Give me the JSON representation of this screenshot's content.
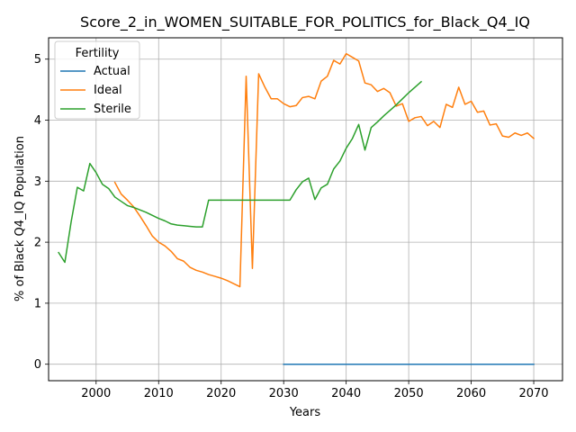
{
  "chart_data": {
    "type": "line",
    "title": "Score_2_in_WOMEN_SUITABLE_FOR_POLITICS_for_Black_Q4_IQ",
    "xlabel": "Years",
    "ylabel": "% of Black Q4_IQ Population",
    "xlim": [
      1992.4,
      2074.6
    ],
    "ylim": [
      -0.27,
      5.35
    ],
    "xticks": [
      2000,
      2010,
      2020,
      2030,
      2040,
      2050,
      2060,
      2070
    ],
    "yticks": [
      0,
      1,
      2,
      3,
      4,
      5
    ],
    "grid": true,
    "legend": {
      "title": "Fertility",
      "placement": "top-left"
    },
    "colors": {
      "Actual": "#1f77b4",
      "Ideal": "#ff7f0e",
      "Sterile": "#2ca02c"
    },
    "series": [
      {
        "name": "Actual",
        "x": [
          2030,
          2035,
          2040,
          2045,
          2050,
          2055,
          2060,
          2065,
          2070
        ],
        "y": [
          0,
          0,
          0,
          0,
          0,
          0,
          0,
          0,
          0
        ]
      },
      {
        "name": "Ideal",
        "x": [
          2003,
          2004,
          2005,
          2006,
          2007,
          2008,
          2009,
          2010,
          2011,
          2012,
          2013,
          2014,
          2015,
          2016,
          2017,
          2018,
          2019,
          2020,
          2021,
          2022,
          2023,
          2024,
          2025,
          2026,
          2027,
          2028,
          2029,
          2030,
          2031,
          2032,
          2033,
          2034,
          2035,
          2036,
          2037,
          2038,
          2039,
          2040,
          2041,
          2042,
          2043,
          2044,
          2045,
          2046,
          2047,
          2048,
          2049,
          2050,
          2051,
          2052,
          2053,
          2054,
          2055,
          2056,
          2057,
          2058,
          2059,
          2060,
          2061,
          2062,
          2063,
          2064,
          2065,
          2066,
          2067,
          2068,
          2069,
          2070
        ],
        "y": [
          2.98,
          2.79,
          2.69,
          2.58,
          2.43,
          2.27,
          2.1,
          2.0,
          1.94,
          1.85,
          1.73,
          1.69,
          1.59,
          1.54,
          1.51,
          1.47,
          1.44,
          1.41,
          1.37,
          1.32,
          1.27,
          4.72,
          1.57,
          4.76,
          4.54,
          4.35,
          4.35,
          4.27,
          4.22,
          4.24,
          4.37,
          4.39,
          4.35,
          4.64,
          4.72,
          4.98,
          4.92,
          5.09,
          5.03,
          4.97,
          4.61,
          4.58,
          4.47,
          4.52,
          4.45,
          4.23,
          4.27,
          3.98,
          4.04,
          4.06,
          3.91,
          3.98,
          3.88,
          4.26,
          4.21,
          4.54,
          4.26,
          4.31,
          4.13,
          4.15,
          3.92,
          3.94,
          3.74,
          3.72,
          3.79,
          3.75,
          3.79,
          3.7
        ]
      },
      {
        "name": "Sterile",
        "x": [
          1994,
          1995,
          1996,
          1997,
          1998,
          1999,
          2000,
          2001,
          2002,
          2003,
          2004,
          2005,
          2006,
          2007,
          2008,
          2009,
          2010,
          2011,
          2012,
          2013,
          2014,
          2015,
          2016,
          2017,
          2018,
          2019,
          2020,
          2021,
          2022,
          2023,
          2024,
          2025,
          2026,
          2027,
          2028,
          2029,
          2030,
          2031,
          2032,
          2033,
          2034,
          2035,
          2036,
          2037,
          2038,
          2039,
          2040,
          2041,
          2042,
          2043,
          2044,
          2045,
          2046,
          2047,
          2048,
          2049,
          2050,
          2051,
          2052
        ],
        "y": [
          1.83,
          1.67,
          2.33,
          2.9,
          2.84,
          3.29,
          3.14,
          2.95,
          2.88,
          2.74,
          2.67,
          2.6,
          2.57,
          2.53,
          2.49,
          2.44,
          2.39,
          2.35,
          2.3,
          2.28,
          2.27,
          2.26,
          2.25,
          2.25,
          2.69,
          2.69,
          2.69,
          2.69,
          2.69,
          2.69,
          2.69,
          2.69,
          2.69,
          2.69,
          2.69,
          2.69,
          2.69,
          2.69,
          2.86,
          2.99,
          3.05,
          2.7,
          2.89,
          2.95,
          3.2,
          3.33,
          3.54,
          3.7,
          3.93,
          3.51,
          3.88,
          3.97,
          4.07,
          4.16,
          4.25,
          4.35,
          4.45,
          4.54,
          4.63
        ]
      }
    ]
  }
}
